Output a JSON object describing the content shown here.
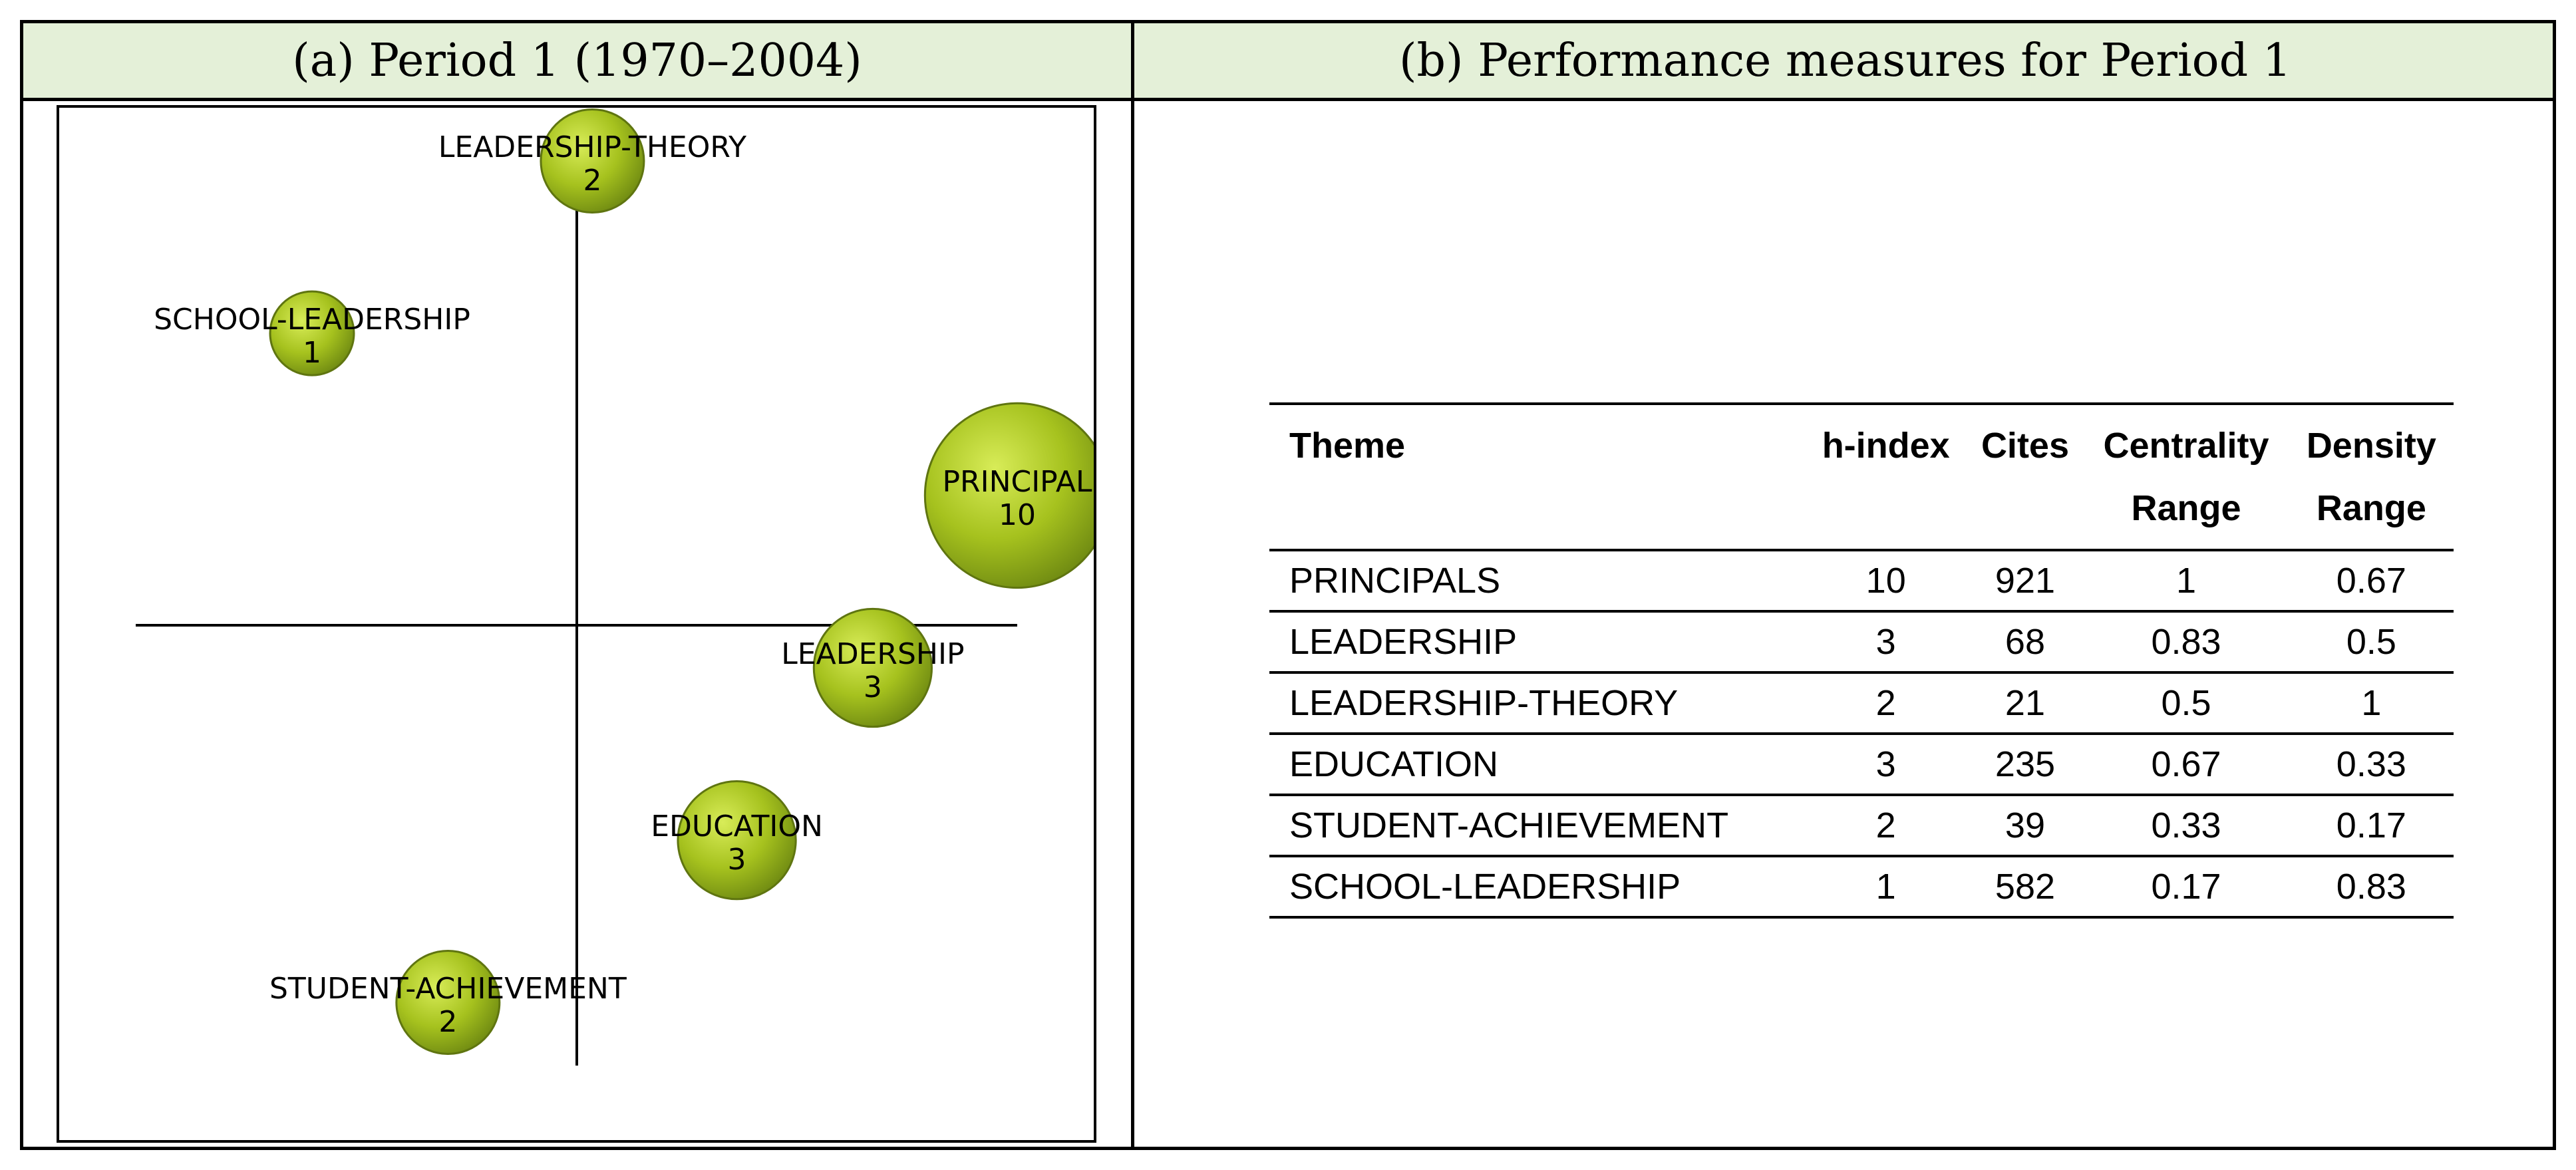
{
  "panels": {
    "left_title": "(a) Period 1 (1970–2004)",
    "right_title": "(b) Performance measures for Period 1"
  },
  "colors": {
    "header_bg": "#e4f0d8",
    "bubble_fill": "#a6c21e",
    "bubble_edge": "#5f7510"
  },
  "chart_data": [
    {
      "type": "scatter",
      "description": "Strategic diagram (centrality vs density) with bubbles sized by h-index",
      "title": "",
      "xlabel": "",
      "ylabel": "",
      "xlim": [
        0,
        1
      ],
      "ylim": [
        0,
        1
      ],
      "grid": false,
      "points": [
        {
          "label": "LEADERSHIP-THEORY",
          "x": 0.5,
          "y": 1.0,
          "size": 2,
          "label_text": "LEADERSHIP-THEORY",
          "value_text": "2"
        },
        {
          "label": "SCHOOL-LEADERSHIP",
          "x": 0.17,
          "y": 0.83,
          "size": 1,
          "label_text": "SCHOOL-LEADERSHIP",
          "value_text": "1"
        },
        {
          "label": "PRINCIPALS",
          "x": 1.0,
          "y": 0.67,
          "size": 10,
          "label_text": "PRINCIPAL",
          "value_text": "10"
        },
        {
          "label": "LEADERSHIP",
          "x": 0.83,
          "y": 0.5,
          "size": 3,
          "label_text": "LEADERSHIP",
          "value_text": "3"
        },
        {
          "label": "EDUCATION",
          "x": 0.67,
          "y": 0.33,
          "size": 3,
          "label_text": "EDUCATION",
          "value_text": "3"
        },
        {
          "label": "STUDENT-ACHIEVEMENT",
          "x": 0.33,
          "y": 0.17,
          "size": 2,
          "label_text": "STUDENT-ACHIEVEMENT",
          "value_text": "2"
        }
      ]
    },
    {
      "type": "table",
      "columns": [
        "Theme",
        "h-index",
        "Cites",
        "Centrality\nRange",
        "Density\nRange"
      ],
      "rows": [
        [
          "PRINCIPALS",
          "10",
          "921",
          "1",
          "0.67"
        ],
        [
          "LEADERSHIP",
          "3",
          "68",
          "0.83",
          "0.5"
        ],
        [
          "LEADERSHIP-THEORY",
          "2",
          "21",
          "0.5",
          "1"
        ],
        [
          "EDUCATION",
          "3",
          "235",
          "0.67",
          "0.33"
        ],
        [
          "STUDENT-ACHIEVEMENT",
          "2",
          "39",
          "0.33",
          "0.17"
        ],
        [
          "SCHOOL-LEADERSHIP",
          "1",
          "582",
          "0.17",
          "0.83"
        ]
      ]
    }
  ]
}
